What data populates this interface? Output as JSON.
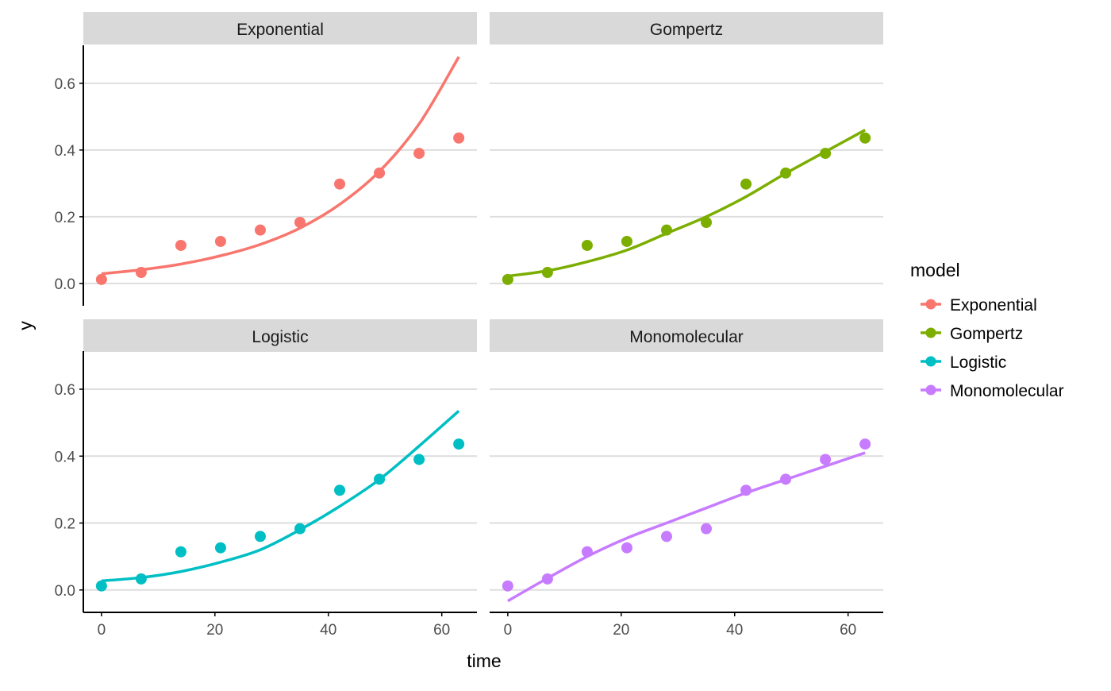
{
  "chart_data": {
    "type": "line",
    "xlabel": "time",
    "ylabel": "y",
    "xlim": [
      -3.2,
      66.2
    ],
    "ylim": [
      -0.067,
      0.714
    ],
    "x_ticks": [
      0,
      20,
      40,
      60
    ],
    "y_ticks": [
      "0.0",
      "0.2",
      "0.4",
      "0.6"
    ],
    "grid": "horizontal major",
    "legend": {
      "title": "model",
      "position": "right"
    },
    "observed_time": [
      0,
      7,
      14,
      21,
      28,
      35,
      42,
      49,
      56,
      63
    ],
    "observed_y": [
      0.012,
      0.033,
      0.114,
      0.126,
      0.16,
      0.183,
      0.298,
      0.331,
      0.39,
      0.436
    ],
    "fitted_time": [
      0,
      7,
      14,
      21,
      28,
      35,
      42,
      49,
      56,
      63
    ],
    "series": [
      {
        "name": "Exponential",
        "color": "#F8766D",
        "fitted": [
          0.029,
          0.041,
          0.058,
          0.083,
          0.117,
          0.166,
          0.237,
          0.336,
          0.478,
          0.679
        ]
      },
      {
        "name": "Gompertz",
        "color": "#7CAE00",
        "fitted": [
          0.022,
          0.038,
          0.065,
          0.1,
          0.15,
          0.2,
          0.26,
          0.33,
          0.395,
          0.46
        ]
      },
      {
        "name": "Logistic",
        "color": "#00BFC4",
        "fitted": [
          0.027,
          0.037,
          0.055,
          0.083,
          0.12,
          0.18,
          0.25,
          0.33,
          0.43,
          0.535
        ]
      },
      {
        "name": "Monomolecular",
        "color": "#C77CFF",
        "fitted": [
          -0.033,
          0.035,
          0.1,
          0.155,
          0.2,
          0.245,
          0.29,
          0.33,
          0.37,
          0.41
        ]
      }
    ]
  }
}
